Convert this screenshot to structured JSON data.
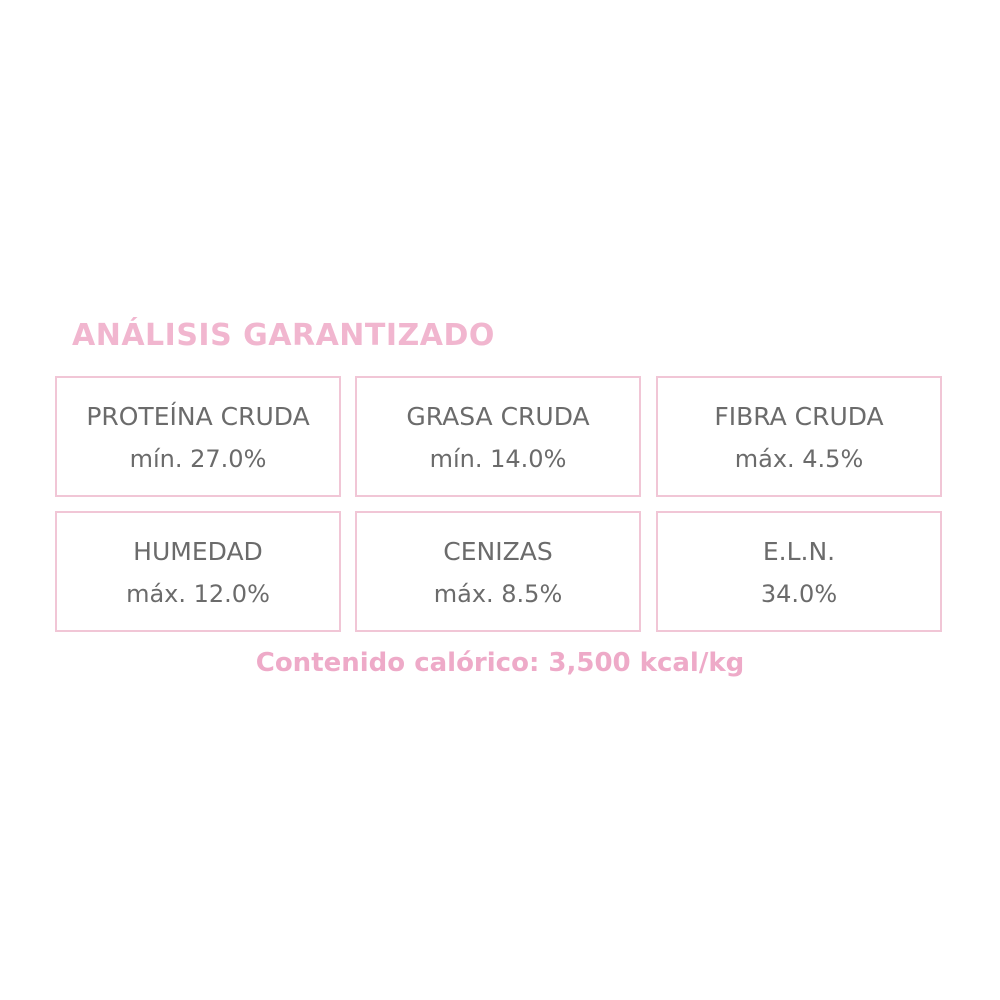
{
  "title": "ANÁLISIS GARANTIZADO",
  "cells": [
    {
      "label": "PROTEÍNA CRUDA",
      "value": "mín. 27.0%"
    },
    {
      "label": "GRASA CRUDA",
      "value": "mín. 14.0%"
    },
    {
      "label": "FIBRA CRUDA",
      "value": "máx. 4.5%"
    },
    {
      "label": "HUMEDAD",
      "value": "máx. 12.0%"
    },
    {
      "label": "CENIZAS",
      "value": "máx. 8.5%"
    },
    {
      "label": "E.L.N.",
      "value": "34.0%"
    }
  ],
  "footer": "Contenido calórico: 3,500 kcal/kg"
}
